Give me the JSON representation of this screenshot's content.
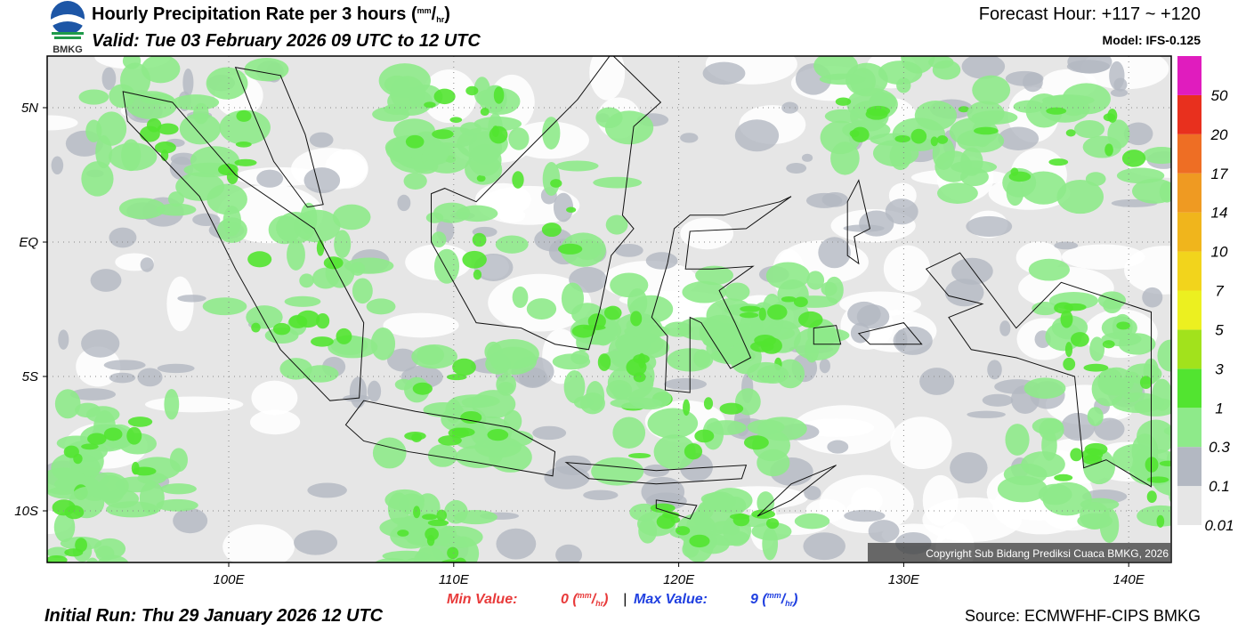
{
  "header": {
    "logo": "BMKG",
    "title": "Hourly Precipitation Rate per 3 hours",
    "valid": "Valid: Tue 03 February 2026 09 UTC to 12 UTC",
    "forecast_hour": "Forecast Hour: +117 ~ +120",
    "model": "Model: IFS-0.125"
  },
  "unit": {
    "open": "(",
    "num": "mm",
    "sep": "/",
    "den": "hr",
    "close": ")"
  },
  "map": {
    "lat_labels": [
      "5N",
      "EQ",
      "5S",
      "10S"
    ],
    "lon_labels": [
      "100E",
      "110E",
      "120E",
      "130E",
      "140E"
    ],
    "copyright": "Copyright Sub Bidang Prediksi Cuaca BMKG, 2026"
  },
  "legend": {
    "levels": [
      {
        "label": "0.01",
        "color": "#e6e6e6"
      },
      {
        "label": "0.1",
        "color": "#b3b8c2"
      },
      {
        "label": "0.3",
        "color": "#8eea8a"
      },
      {
        "label": "1",
        "color": "#52e430"
      },
      {
        "label": "3",
        "color": "#a2e21c"
      },
      {
        "label": "5",
        "color": "#ecf020"
      },
      {
        "label": "7",
        "color": "#f2d41c"
      },
      {
        "label": "10",
        "color": "#f0b51c"
      },
      {
        "label": "14",
        "color": "#ef9a22"
      },
      {
        "label": "17",
        "color": "#ee6e24"
      },
      {
        "label": "20",
        "color": "#e8301e"
      },
      {
        "label": "50",
        "color": "#e01cbe"
      }
    ]
  },
  "footer": {
    "min_label": "Min Value:",
    "min_value": 0,
    "separator": "|",
    "max_label": "Max Value:",
    "max_value": 9,
    "initial_run": "Initial Run: Thu 29 January 2026 12 UTC",
    "source": "Source: ECMWFHF-CIPS BMKG"
  }
}
